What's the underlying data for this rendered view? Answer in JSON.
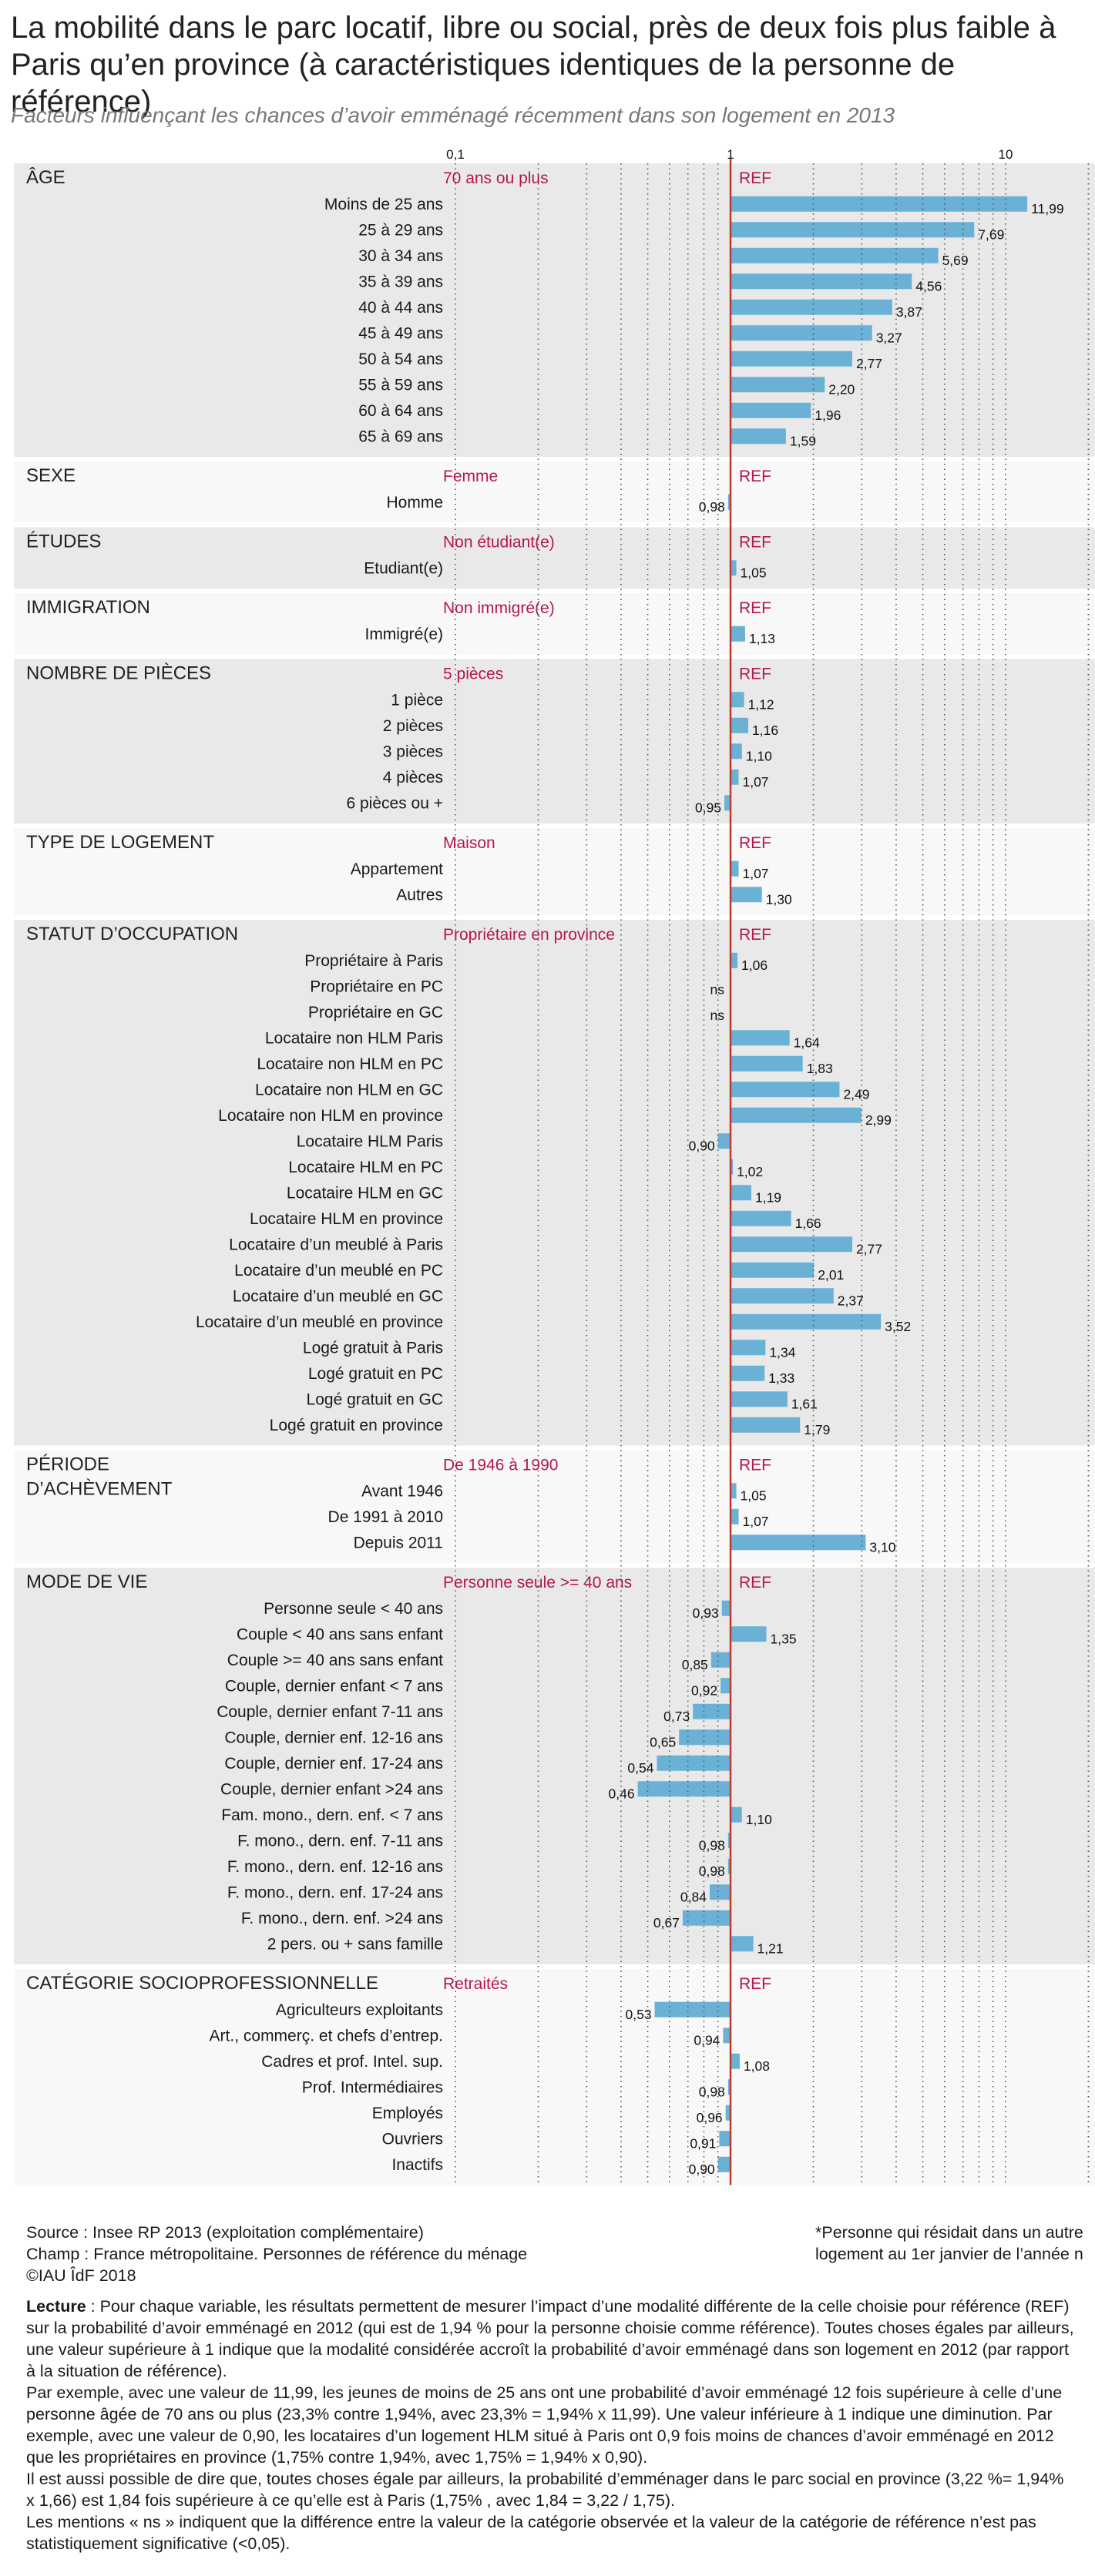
{
  "title": "La mobilité dans le parc locatif, libre ou social, près de deux fois plus faible à Paris qu’en province (à caractéristiques identiques de la personne de référence)",
  "subtitle": "Facteurs influençant les chances d’avoir emménagé récemment dans son logement en 2013",
  "colors": {
    "bar": "#6bb1d6",
    "ref_line": "#c0392b",
    "ref_text": "#b5174a",
    "band_gray": "#e9e9e9",
    "band_white": "#f8f8f8",
    "dotted": "#555555"
  },
  "chart_data": {
    "type": "bar",
    "orientation": "horizontal",
    "scale": "log",
    "xlim": [
      0.1,
      20
    ],
    "ticks": [
      {
        "value": 0.1,
        "label": "0,1"
      },
      {
        "value": 1,
        "label": "1"
      },
      {
        "value": 10,
        "label": "10"
      }
    ],
    "reference_value": 1,
    "sections": [
      {
        "name": "ÂGE",
        "ref_category": "70 ans ou plus",
        "ref_label": "REF",
        "rows": [
          {
            "label": "Moins de 25 ans",
            "value": 11.99,
            "text": "11,99"
          },
          {
            "label": "25 à 29 ans",
            "value": 7.69,
            "text": "7,69"
          },
          {
            "label": "30 à 34 ans",
            "value": 5.69,
            "text": "5,69"
          },
          {
            "label": "35 à 39 ans",
            "value": 4.56,
            "text": "4,56"
          },
          {
            "label": "40 à 44 ans",
            "value": 3.87,
            "text": "3,87"
          },
          {
            "label": "45 à 49 ans",
            "value": 3.27,
            "text": "3,27"
          },
          {
            "label": "50 à 54 ans",
            "value": 2.77,
            "text": "2,77"
          },
          {
            "label": "55 à 59 ans",
            "value": 2.2,
            "text": "2,20"
          },
          {
            "label": "60 à 64 ans",
            "value": 1.96,
            "text": "1,96"
          },
          {
            "label": "65 à 69 ans",
            "value": 1.59,
            "text": "1,59"
          }
        ]
      },
      {
        "name": "SEXE",
        "ref_category": "Femme",
        "ref_label": "REF",
        "rows": [
          {
            "label": "Homme",
            "value": 0.98,
            "text": "0,98"
          }
        ]
      },
      {
        "name": "ÉTUDES",
        "ref_category": "Non étudiant(e)",
        "ref_label": "REF",
        "rows": [
          {
            "label": "Etudiant(e)",
            "value": 1.05,
            "text": "1,05"
          }
        ]
      },
      {
        "name": "IMMIGRATION",
        "ref_category": "Non immigré(e)",
        "ref_label": "REF",
        "rows": [
          {
            "label": "Immigré(e)",
            "value": 1.13,
            "text": "1,13"
          }
        ]
      },
      {
        "name": "NOMBRE DE PIÈCES",
        "ref_category": "5 pièces",
        "ref_label": "REF",
        "rows": [
          {
            "label": "1 pièce",
            "value": 1.12,
            "text": "1,12"
          },
          {
            "label": "2 pièces",
            "value": 1.16,
            "text": "1,16"
          },
          {
            "label": "3 pièces",
            "value": 1.1,
            "text": "1,10"
          },
          {
            "label": "4 pièces",
            "value": 1.07,
            "text": "1,07"
          },
          {
            "label": "6 pièces ou +",
            "value": 0.95,
            "text": "0,95"
          }
        ]
      },
      {
        "name": "TYPE DE LOGEMENT",
        "ref_category": "Maison",
        "ref_label": "REF",
        "rows": [
          {
            "label": "Appartement",
            "value": 1.07,
            "text": "1,07"
          },
          {
            "label": "Autres",
            "value": 1.3,
            "text": "1,30"
          }
        ]
      },
      {
        "name": "STATUT D’OCCUPATION",
        "ref_category": "Propriétaire en province",
        "ref_label": "REF",
        "rows": [
          {
            "label": "Propriétaire à Paris",
            "value": 1.06,
            "text": "1,06"
          },
          {
            "label": "Propriétaire en PC",
            "value": null,
            "text": "ns"
          },
          {
            "label": "Propriétaire en GC",
            "value": null,
            "text": "ns"
          },
          {
            "label": "Locataire non HLM Paris",
            "value": 1.64,
            "text": "1,64"
          },
          {
            "label": "Locataire non HLM en PC",
            "value": 1.83,
            "text": "1,83"
          },
          {
            "label": "Locataire non HLM en GC",
            "value": 2.49,
            "text": "2,49"
          },
          {
            "label": "Locataire non HLM en province",
            "value": 2.99,
            "text": "2,99"
          },
          {
            "label": "Locataire HLM Paris",
            "value": 0.9,
            "text": "0,90"
          },
          {
            "label": "Locataire HLM en PC",
            "value": 1.02,
            "text": "1,02"
          },
          {
            "label": "Locataire HLM en GC",
            "value": 1.19,
            "text": "1,19"
          },
          {
            "label": "Locataire HLM en province",
            "value": 1.66,
            "text": "1,66"
          },
          {
            "label": "Locataire d’un meublé à Paris",
            "value": 2.77,
            "text": "2,77"
          },
          {
            "label": "Locataire d’un meublé en PC",
            "value": 2.01,
            "text": "2,01"
          },
          {
            "label": "Locataire d’un meublé en GC",
            "value": 2.37,
            "text": "2,37"
          },
          {
            "label": "Locataire d’un meublé en province",
            "value": 3.52,
            "text": "3,52"
          },
          {
            "label": "Logé gratuit à Paris",
            "value": 1.34,
            "text": "1,34"
          },
          {
            "label": "Logé gratuit en PC",
            "value": 1.33,
            "text": "1,33"
          },
          {
            "label": "Logé gratuit en GC",
            "value": 1.61,
            "text": "1,61"
          },
          {
            "label": "Logé gratuit en province",
            "value": 1.79,
            "text": "1,79"
          }
        ]
      },
      {
        "name": "PÉRIODE D’ACHÈVEMENT",
        "name_lines": [
          "PÉRIODE",
          "D’ACHÈVEMENT"
        ],
        "ref_category": "De 1946 à 1990",
        "ref_label": "REF",
        "rows": [
          {
            "label": "Avant 1946",
            "value": 1.05,
            "text": "1,05"
          },
          {
            "label": "De 1991 à 2010",
            "value": 1.07,
            "text": "1,07"
          },
          {
            "label": "Depuis 2011",
            "value": 3.1,
            "text": "3,10"
          }
        ]
      },
      {
        "name": "MODE DE VIE",
        "ref_category": "Personne seule >= 40 ans",
        "ref_label": "REF",
        "rows": [
          {
            "label": "Personne seule <  40 ans",
            "value": 0.93,
            "text": "0,93"
          },
          {
            "label": "Couple < 40 ans sans enfant",
            "value": 1.35,
            "text": "1,35"
          },
          {
            "label": "Couple >= 40 ans sans enfant",
            "value": 0.85,
            "text": "0,85"
          },
          {
            "label": "Couple, dernier enfant <  7 ans",
            "value": 0.92,
            "text": "0,92"
          },
          {
            "label": "Couple, dernier enfant 7-11 ans",
            "value": 0.73,
            "text": "0,73"
          },
          {
            "label": "Couple, dernier enf. 12-16 ans",
            "value": 0.65,
            "text": "0,65"
          },
          {
            "label": "Couple, dernier enf. 17-24 ans",
            "value": 0.54,
            "text": "0,54"
          },
          {
            "label": "Couple, dernier enfant >24 ans",
            "value": 0.46,
            "text": "0,46"
          },
          {
            "label": "Fam. mono., dern. enf. <  7 ans",
            "value": 1.1,
            "text": "1,10"
          },
          {
            "label": "F. mono., dern. enf. 7-11 ans",
            "value": 0.98,
            "text": "0,98"
          },
          {
            "label": "F. mono., dern. enf. 12-16 ans",
            "value": 0.98,
            "text": "0,98"
          },
          {
            "label": "F. mono., dern. enf. 17-24 ans",
            "value": 0.84,
            "text": "0,84"
          },
          {
            "label": "F. mono., dern. enf. >24 ans",
            "value": 0.67,
            "text": "0,67"
          },
          {
            "label": "2 pers. ou + sans famille",
            "value": 1.21,
            "text": "1,21"
          }
        ]
      },
      {
        "name": "CATÉGORIE SOCIOPROFESSIONNELLE",
        "ref_category": "Retraités",
        "ref_label": "REF",
        "rows": [
          {
            "label": "Agriculteurs exploitants",
            "value": 0.53,
            "text": "0,53"
          },
          {
            "label": "Art., commerç. et chefs d’entrep.",
            "value": 0.94,
            "text": "0,94"
          },
          {
            "label": "Cadres et prof. Intel. sup.",
            "value": 1.08,
            "text": "1,08"
          },
          {
            "label": "Prof. Intermédiaires",
            "value": 0.98,
            "text": "0,98"
          },
          {
            "label": "Employés",
            "value": 0.96,
            "text": "0,96"
          },
          {
            "label": "Ouvriers",
            "value": 0.91,
            "text": "0,91"
          },
          {
            "label": "Inactifs",
            "value": 0.9,
            "text": "0,90"
          }
        ]
      }
    ]
  },
  "footer": {
    "source": "Source : Insee  RP 2013 (exploitation complémentaire)",
    "champ": "Champ : France métropolitaine. Personnes de référence du ménage",
    "copyright": "©IAU ÎdF 2018",
    "note_line1": "*Personne qui résidait dans un autre",
    "note_line2": "logement au 1er janvier de l’année n",
    "lecture_label": "Lecture",
    "paragraphs": [
      " : Pour chaque variable, les résultats permettent de mesurer l’impact d’une modalité différente de la celle choisie pour référence (REF) sur la probabilité d’avoir emménagé en 2012 (qui est de 1,94 % pour la personne choisie comme référence). Toutes choses égales par ailleurs, une valeur supérieure à 1 indique que la modalité considérée accroît la probabilité d’avoir emménagé dans son logement en 2012 (par rapport à la situation de référence).",
      "Par exemple, avec une valeur de 11,99, les jeunes de moins de 25 ans ont une probabilité d’avoir emménagé 12 fois supérieure à celle d’une personne âgée de 70 ans ou plus (23,3% contre 1,94%, avec 23,3% = 1,94% x 11,99). Une valeur inférieure à 1 indique une diminution. Par exemple, avec une valeur de 0,90, les locataires d’un logement HLM situé à Paris ont 0,9 fois moins de chances d’avoir emménagé en 2012 que les propriétaires en province (1,75% contre 1,94%, avec 1,75% = 1,94% x 0,90).",
      "Il est aussi possible de dire que, toutes choses égale par ailleurs, la probabilité d’emménager dans le parc social en province (3,22 %= 1,94% x 1,66) est 1,84 fois supérieure à ce qu’elle est à Paris (1,75% , avec 1,84 = 3,22 / 1,75).",
      "Les mentions « ns » indiquent que la différence entre la valeur de la catégorie observée et la valeur de la catégorie de référence n’est pas statistiquement significative (<0,05)."
    ]
  }
}
